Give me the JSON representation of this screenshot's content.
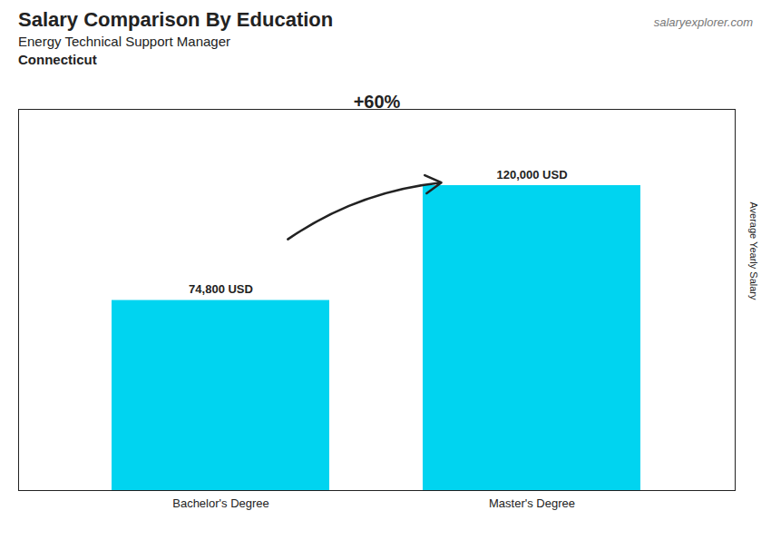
{
  "chart_data": {
    "type": "bar",
    "title": "Salary Comparison By Education",
    "subtitle": [
      "Energy Technical Support Manager",
      "Connecticut"
    ],
    "ylabel": "Average Yearly Salary",
    "categories": [
      "Bachelor's Degree",
      "Master's Degree"
    ],
    "values": [
      74800,
      120000
    ],
    "value_labels": [
      "74,800 USD",
      "120,000 USD"
    ],
    "data_labels": true,
    "color": "#00d4f0",
    "ylim": [
      0,
      150000
    ],
    "tick_labels": "x",
    "annotations": [
      "+60%",
      "salaryexplorer.com"
    ]
  }
}
